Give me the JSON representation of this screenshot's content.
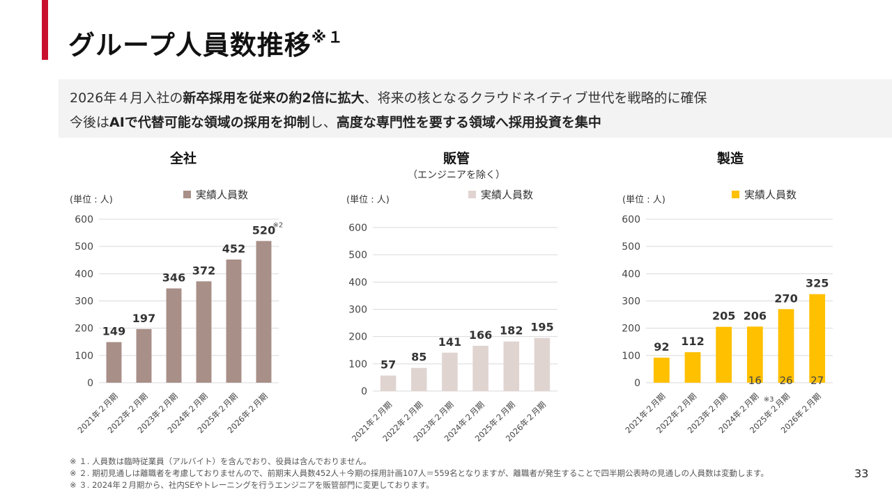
{
  "title": {
    "main": "グループ人員数推移",
    "sup": "※１"
  },
  "lead": {
    "line1": [
      "2026年４月入社の",
      "新卒採用を従来の約2倍に拡大",
      "、将来の核となるクラウドネイティブ世代を戦略的に確保"
    ],
    "line2": [
      "今後は",
      "AIで代替可能な領域の採用を抑制",
      "し、",
      "高度な専門性を要する領域へ採用投資を集中"
    ]
  },
  "chart_data": [
    {
      "type": "bar",
      "title": "全社",
      "subtitle": "",
      "unit_label": "(単位 : 人)",
      "legend": "実績人員数",
      "color": "#a88f88",
      "categories": [
        "2021年２月期",
        "2022年２月期",
        "2023年２月期",
        "2024年２月期",
        "2025年２月期",
        "2026年２月期"
      ],
      "values": [
        149,
        197,
        346,
        372,
        452,
        520
      ],
      "labels": [
        "149",
        "197",
        "346",
        "372",
        "452",
        "520"
      ],
      "ylim": [
        0,
        600
      ],
      "yticks": [
        "0",
        "100",
        "200",
        "300",
        "400",
        "500",
        "600"
      ],
      "annotation": {
        "index": 5,
        "text": "※2"
      }
    },
    {
      "type": "bar",
      "title": "販管",
      "subtitle": "（エンジニアを除く）",
      "unit_label": "(単位 : 人)",
      "legend": "実績人員数",
      "color": "#e0d4d1",
      "categories": [
        "2021年２月期",
        "2022年２月期",
        "2023年２月期",
        "2024年２月期",
        "2025年２月期",
        "2026年２月期"
      ],
      "values": [
        57,
        85,
        141,
        166,
        182,
        195
      ],
      "labels": [
        "57",
        "85",
        "141",
        "166",
        "182",
        "195"
      ],
      "ylim": [
        0,
        600
      ],
      "yticks": [
        "0",
        "100",
        "200",
        "300",
        "400",
        "500",
        "600"
      ]
    },
    {
      "type": "bar",
      "title": "製造",
      "subtitle": "",
      "unit_label": "(単位 : 人)",
      "legend": "実績人員数",
      "color": "#ffc000",
      "categories": [
        "2021年２月期",
        "2022年２月期",
        "2023年２月期",
        "2024年２月期",
        "2025年２月期",
        "2026年２月期"
      ],
      "values": [
        92,
        112,
        205,
        206,
        270,
        325
      ],
      "labels": [
        "92",
        "112",
        "205",
        "206",
        "270",
        "325"
      ],
      "inner_values": [
        null,
        null,
        null,
        "16",
        "26",
        "27"
      ],
      "ylim": [
        0,
        600
      ],
      "yticks": [
        "0",
        "100",
        "200",
        "300",
        "400",
        "500",
        "600"
      ],
      "annotation": {
        "index": 3,
        "text": "※3"
      }
    }
  ],
  "footnotes": [
    "※ １. 人員数は臨時従業員（アルバイト）を含んでおり、役員は含んでおりません。",
    "※ ２. 期初見通しは離職者を考慮しておりませんので、前期末人員数452人＋今期の採用計画107人＝559名となりますが、離職者が発生することで四半期公表時の見通しの人員数は変動します。",
    "※ ３. 2024年２月期から、社内SEやトレーニングを行うエンジニアを販管部門に変更しております。"
  ],
  "page_number": "33"
}
